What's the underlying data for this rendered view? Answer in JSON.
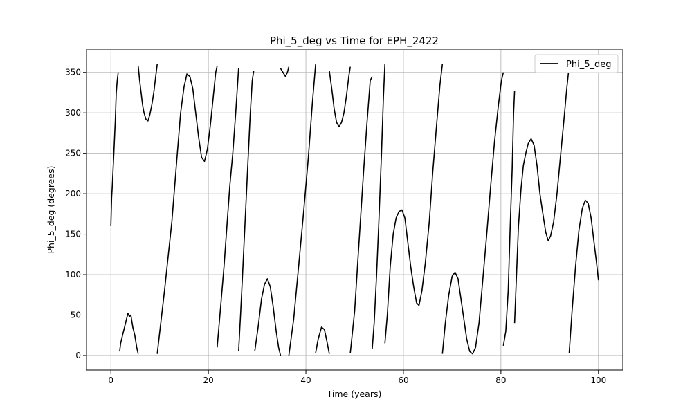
{
  "chart_data": {
    "type": "line",
    "title": "Phi_5_deg vs Time for EPH_2422",
    "xlabel": "Time (years)",
    "ylabel": "Phi_5_deg (degrees)",
    "xlim": [
      -5,
      105
    ],
    "ylim": [
      -18,
      378
    ],
    "xticks": [
      0,
      20,
      40,
      60,
      80,
      100
    ],
    "yticks": [
      0,
      50,
      100,
      150,
      200,
      250,
      300,
      350
    ],
    "grid": true,
    "legend": {
      "position": "top-right",
      "entries": [
        "Phi_5_deg"
      ]
    },
    "colors": {
      "line": "#000000",
      "grid": "#b0b0b0"
    },
    "series": [
      {
        "name": "Phi_5_deg",
        "segments": [
          [
            [
              0.0,
              160
            ],
            [
              0.15,
              195
            ],
            [
              0.3,
              210
            ],
            [
              0.6,
              250
            ],
            [
              0.9,
              290
            ],
            [
              1.1,
              325
            ],
            [
              1.3,
              340
            ],
            [
              1.5,
              350
            ]
          ],
          [
            [
              1.8,
              5
            ],
            [
              2.0,
              15
            ],
            [
              2.4,
              25
            ],
            [
              2.8,
              35
            ],
            [
              3.2,
              45
            ],
            [
              3.5,
              52
            ],
            [
              3.8,
              48
            ],
            [
              4.1,
              50
            ],
            [
              4.5,
              35
            ],
            [
              4.9,
              25
            ],
            [
              5.3,
              10
            ],
            [
              5.6,
              2
            ]
          ],
          [
            [
              5.6,
              358
            ],
            [
              5.9,
              340
            ],
            [
              6.2,
              325
            ],
            [
              6.5,
              310
            ],
            [
              6.8,
              300
            ],
            [
              7.2,
              292
            ],
            [
              7.6,
              290
            ],
            [
              8.0,
              298
            ],
            [
              8.4,
              310
            ],
            [
              8.8,
              325
            ],
            [
              9.2,
              345
            ],
            [
              9.5,
              360
            ]
          ],
          [
            [
              9.5,
              2
            ],
            [
              11.0,
              80
            ],
            [
              12.5,
              165
            ],
            [
              13.5,
              240
            ],
            [
              14.3,
              300
            ],
            [
              15.0,
              332
            ],
            [
              15.6,
              348
            ],
            [
              16.2,
              345
            ],
            [
              16.8,
              330
            ],
            [
              17.4,
              300
            ],
            [
              18.0,
              270
            ],
            [
              18.6,
              245
            ],
            [
              19.2,
              240
            ],
            [
              19.8,
              255
            ],
            [
              20.4,
              285
            ],
            [
              21.0,
              320
            ],
            [
              21.5,
              350
            ],
            [
              21.8,
              358
            ]
          ],
          [
            [
              21.8,
              10
            ],
            [
              22.5,
              60
            ],
            [
              23.2,
              110
            ],
            [
              23.8,
              160
            ],
            [
              24.4,
              210
            ],
            [
              25.0,
              250
            ],
            [
              25.6,
              300
            ],
            [
              26.2,
              355
            ]
          ],
          [
            [
              26.2,
              5
            ],
            [
              26.6,
              50
            ],
            [
              27.0,
              100
            ],
            [
              27.4,
              150
            ],
            [
              27.8,
              200
            ],
            [
              28.2,
              250
            ],
            [
              28.6,
              300
            ],
            [
              29.0,
              340
            ],
            [
              29.3,
              352
            ]
          ],
          [
            [
              29.5,
              5
            ],
            [
              30.2,
              35
            ],
            [
              30.9,
              70
            ],
            [
              31.5,
              88
            ],
            [
              32.1,
              95
            ],
            [
              32.7,
              85
            ],
            [
              33.3,
              60
            ],
            [
              33.9,
              30
            ],
            [
              34.4,
              10
            ],
            [
              34.8,
              0
            ]
          ],
          [
            [
              34.8,
              355
            ],
            [
              35.3,
              350
            ],
            [
              35.8,
              345
            ],
            [
              36.2,
              350
            ],
            [
              36.5,
              357
            ]
          ],
          [
            [
              36.5,
              0
            ],
            [
              37.5,
              45
            ],
            [
              38.5,
              110
            ],
            [
              39.5,
              175
            ],
            [
              40.5,
              245
            ],
            [
              41.3,
              310
            ],
            [
              42.0,
              360
            ]
          ],
          [
            [
              42.0,
              3
            ],
            [
              42.5,
              20
            ],
            [
              43.2,
              35
            ],
            [
              43.8,
              32
            ],
            [
              44.3,
              18
            ],
            [
              44.8,
              2
            ]
          ],
          [
            [
              44.8,
              352
            ],
            [
              45.3,
              330
            ],
            [
              45.8,
              305
            ],
            [
              46.3,
              288
            ],
            [
              46.8,
              283
            ],
            [
              47.3,
              288
            ],
            [
              47.8,
              300
            ],
            [
              48.3,
              320
            ],
            [
              48.8,
              345
            ],
            [
              49.1,
              357
            ]
          ],
          [
            [
              49.1,
              3
            ],
            [
              50.0,
              55
            ],
            [
              50.9,
              140
            ],
            [
              51.8,
              225
            ],
            [
              52.5,
              285
            ],
            [
              53.2,
              340
            ],
            [
              53.6,
              345
            ]
          ],
          [
            [
              53.6,
              8
            ],
            [
              54.0,
              40
            ],
            [
              54.5,
              100
            ],
            [
              55.0,
              170
            ],
            [
              55.5,
              250
            ],
            [
              55.9,
              320
            ],
            [
              56.2,
              360
            ]
          ],
          [
            [
              56.2,
              15
            ],
            [
              56.7,
              50
            ],
            [
              57.3,
              110
            ],
            [
              57.9,
              150
            ],
            [
              58.5,
              170
            ],
            [
              59.1,
              178
            ],
            [
              59.7,
              180
            ],
            [
              60.3,
              170
            ],
            [
              60.9,
              140
            ],
            [
              61.5,
              110
            ],
            [
              62.1,
              85
            ],
            [
              62.7,
              65
            ],
            [
              63.2,
              62
            ],
            [
              63.8,
              80
            ],
            [
              64.5,
              115
            ],
            [
              65.3,
              165
            ],
            [
              66.0,
              225
            ],
            [
              66.8,
              285
            ],
            [
              67.5,
              335
            ],
            [
              68.0,
              360
            ]
          ],
          [
            [
              68.0,
              2
            ],
            [
              68.6,
              40
            ],
            [
              69.3,
              75
            ],
            [
              70.0,
              98
            ],
            [
              70.6,
              103
            ],
            [
              71.2,
              95
            ],
            [
              71.8,
              70
            ],
            [
              72.4,
              45
            ],
            [
              73.0,
              20
            ],
            [
              73.6,
              5
            ],
            [
              74.2,
              2
            ],
            [
              74.8,
              10
            ],
            [
              75.5,
              40
            ],
            [
              76.3,
              95
            ],
            [
              77.1,
              150
            ],
            [
              77.9,
              210
            ],
            [
              78.7,
              265
            ],
            [
              79.5,
              310
            ],
            [
              80.1,
              340
            ],
            [
              80.5,
              350
            ]
          ],
          [
            [
              80.5,
              12
            ],
            [
              81.0,
              30
            ],
            [
              81.5,
              80
            ],
            [
              81.9,
              160
            ],
            [
              82.3,
              230
            ],
            [
              82.6,
              300
            ],
            [
              82.8,
              327
            ]
          ],
          [
            [
              82.8,
              40
            ],
            [
              83.2,
              100
            ],
            [
              83.6,
              160
            ],
            [
              84.1,
              205
            ],
            [
              84.6,
              235
            ],
            [
              85.1,
              250
            ],
            [
              85.6,
              262
            ],
            [
              86.2,
              268
            ],
            [
              86.8,
              260
            ],
            [
              87.4,
              235
            ],
            [
              88.0,
              200
            ],
            [
              88.6,
              175
            ],
            [
              89.2,
              152
            ],
            [
              89.7,
              142
            ],
            [
              90.2,
              148
            ],
            [
              90.8,
              165
            ],
            [
              91.5,
              200
            ],
            [
              92.2,
              245
            ],
            [
              92.9,
              290
            ],
            [
              93.5,
              330
            ],
            [
              94.0,
              358
            ]
          ],
          [
            [
              94.0,
              3
            ],
            [
              94.6,
              55
            ],
            [
              95.3,
              110
            ],
            [
              96.0,
              155
            ],
            [
              96.7,
              182
            ],
            [
              97.3,
              192
            ],
            [
              97.9,
              188
            ],
            [
              98.5,
              170
            ],
            [
              99.1,
              140
            ],
            [
              99.6,
              115
            ],
            [
              100.0,
              93
            ]
          ]
        ]
      }
    ]
  }
}
